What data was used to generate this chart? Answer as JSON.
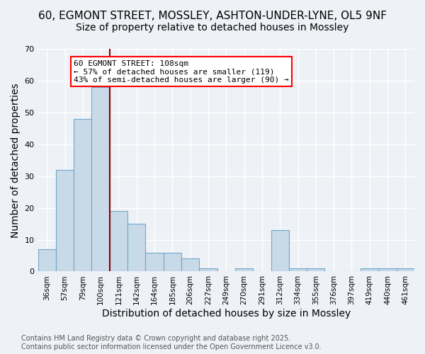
{
  "title_line1": "60, EGMONT STREET, MOSSLEY, ASHTON-UNDER-LYNE, OL5 9NF",
  "title_line2": "Size of property relative to detached houses in Mossley",
  "xlabel": "Distribution of detached houses by size in Mossley",
  "ylabel": "Number of detached properties",
  "bar_values": [
    7,
    32,
    48,
    58,
    19,
    15,
    6,
    6,
    4,
    1,
    0,
    1,
    0,
    13,
    1,
    1,
    0,
    0,
    1,
    1,
    1
  ],
  "bar_labels": [
    "36sqm",
    "57sqm",
    "79sqm",
    "100sqm",
    "121sqm",
    "142sqm",
    "164sqm",
    "185sqm",
    "206sqm",
    "227sqm",
    "249sqm",
    "270sqm",
    "291sqm",
    "312sqm",
    "334sqm",
    "355sqm",
    "376sqm",
    "397sqm",
    "419sqm",
    "440sqm",
    "461sqm"
  ],
  "bar_color": "#c8d9e8",
  "bar_edge_color": "#6fa8c8",
  "annotation_text": "60 EGMONT STREET: 108sqm\n← 57% of detached houses are smaller (119)\n43% of semi-detached houses are larger (90) →",
  "annotation_box_color": "white",
  "annotation_box_edge": "red",
  "vline_color": "darkred",
  "ylim": [
    0,
    70
  ],
  "yticks": [
    0,
    10,
    20,
    30,
    40,
    50,
    60,
    70
  ],
  "footnote": "Contains HM Land Registry data © Crown copyright and database right 2025.\nContains public sector information licensed under the Open Government Licence v3.0.",
  "background_color": "#eef2f7",
  "grid_color": "#ffffff",
  "title_fontsize": 11,
  "subtitle_fontsize": 10,
  "tick_fontsize": 7.5,
  "footnote_fontsize": 7
}
